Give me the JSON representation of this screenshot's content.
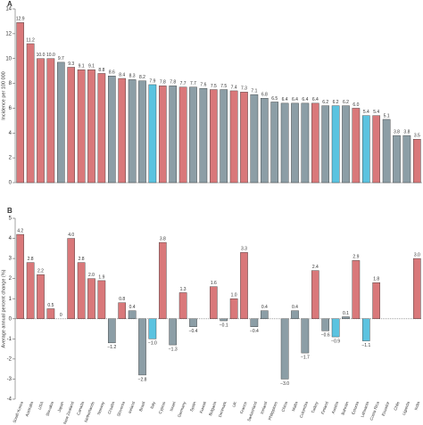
{
  "chart_data": [
    {
      "type": "bar",
      "panel": "A",
      "ylabel": "Incidence per 100 000",
      "values": [
        12.9,
        11.2,
        10.0,
        10.0,
        9.7,
        9.3,
        9.1,
        9.1,
        8.8,
        8.6,
        8.4,
        8.3,
        8.2,
        7.9,
        7.8,
        7.8,
        7.7,
        7.7,
        7.6,
        7.5,
        7.5,
        7.4,
        7.3,
        7.1,
        6.8,
        6.5,
        6.4,
        6.4,
        6.4,
        6.4,
        6.2,
        6.2,
        6.2,
        6.0,
        5.4,
        5.4,
        5.1,
        3.8,
        3.8,
        3.5
      ],
      "value_labels": [
        "12.9",
        "11.2",
        "10.0",
        "10.0",
        "9.7",
        "9.3",
        "9.1",
        "9.1",
        "8.8",
        "8.6",
        "8.4",
        "8.3",
        "8.2",
        "7.9",
        "7.8",
        "7.8",
        "7.7",
        "7.7",
        "7.6",
        "7.5",
        "7.5",
        "7.4",
        "7.3",
        "7.1",
        "6.8",
        "6.5",
        "6.4",
        "6.4",
        "6.4",
        "6.4",
        "6.2",
        "6.2",
        "6.2",
        "6.0",
        "5.4",
        "5.4",
        "5.1",
        "3.8",
        "3.8",
        "3.5"
      ],
      "colors": [
        "#d9787a",
        "#d9787a",
        "#d9787a",
        "#d9787a",
        "#8c9ea6",
        "#d9787a",
        "#d9787a",
        "#d9787a",
        "#d9787a",
        "#8c9ea6",
        "#d9787a",
        "#8c9ea6",
        "#8c9ea6",
        "#5bc3e0",
        "#d9787a",
        "#8c9ea6",
        "#d9787a",
        "#8c9ea6",
        "#8c9ea6",
        "#d9787a",
        "#8c9ea6",
        "#d9787a",
        "#d9787a",
        "#8c9ea6",
        "#8c9ea6",
        "#8c9ea6",
        "#8c9ea6",
        "#8c9ea6",
        "#8c9ea6",
        "#d9787a",
        "#8c9ea6",
        "#5bc3e0",
        "#8c9ea6",
        "#d9787a",
        "#5bc3e0",
        "#d9787a",
        "#8c9ea6",
        "#8c9ea6",
        "#8c9ea6",
        "#d9787a"
      ],
      "ylim": [
        0,
        14
      ],
      "yticks": [
        0,
        2,
        4,
        6,
        8,
        10,
        12,
        14
      ]
    },
    {
      "type": "bar",
      "panel": "B",
      "ylabel": "Average annual percent change (%)",
      "categories": [
        "South Korea",
        "Australia",
        "USA",
        "Slovakia",
        "Japan",
        "New Zealand",
        "Canada",
        "Netherlands",
        "Norway",
        "Croatia",
        "Slovenia",
        "Ireland",
        "Brazil",
        "Italy",
        "Cyprus",
        "Israel",
        "Germany",
        "Spain",
        "Kuwait",
        "Bulgaria",
        "Denmark",
        "UK",
        "France",
        "Switzerland",
        "Iceland",
        "Philippines",
        "China",
        "Malta",
        "Colombia",
        "Turkey",
        "Finland",
        "Austria",
        "Bahrain",
        "Estonia",
        "Lithuania",
        "Costa Rica",
        "Ecuador",
        "Chile",
        "Uganda",
        "India"
      ],
      "values": [
        4.2,
        2.8,
        2.2,
        0.5,
        0,
        4.0,
        2.8,
        2.0,
        1.9,
        -1.2,
        0.8,
        0.4,
        -2.8,
        -1.0,
        3.8,
        -1.3,
        1.3,
        -0.4,
        null,
        1.6,
        -0.1,
        1.0,
        3.3,
        -0.4,
        0.4,
        null,
        -3.0,
        0.4,
        -1.7,
        2.4,
        -0.6,
        -0.9,
        0.1,
        2.9,
        -1.1,
        1.8,
        null,
        null,
        null,
        3.0
      ],
      "value_labels": [
        "4.2",
        "2.8",
        "2.2",
        "0.5",
        "0",
        "4.0",
        "2.8",
        "2.0",
        "1.9",
        "−1.2",
        "0.8",
        "0.4",
        "−2.8",
        "−1.0",
        "3.8",
        "−1.3",
        "1.3",
        "−0.4",
        null,
        "1.6",
        "−0.1",
        "1.0",
        "3.3",
        "−0.4",
        "0.4",
        null,
        "−3.0",
        "0.4",
        "−1.7",
        "2.4",
        "−0.6",
        "−0.9",
        "0.1",
        "2.9",
        "−1.1",
        "1.8",
        null,
        null,
        null,
        "3.0"
      ],
      "colors": [
        "#d9787a",
        "#d9787a",
        "#d9787a",
        "#d9787a",
        "#8c9ea6",
        "#d9787a",
        "#d9787a",
        "#d9787a",
        "#d9787a",
        "#8c9ea6",
        "#d9787a",
        "#8c9ea6",
        "#8c9ea6",
        "#5bc3e0",
        "#d9787a",
        "#8c9ea6",
        "#d9787a",
        "#8c9ea6",
        "#8c9ea6",
        "#d9787a",
        "#8c9ea6",
        "#d9787a",
        "#d9787a",
        "#8c9ea6",
        "#8c9ea6",
        "#8c9ea6",
        "#8c9ea6",
        "#8c9ea6",
        "#8c9ea6",
        "#d9787a",
        "#8c9ea6",
        "#5bc3e0",
        "#8c9ea6",
        "#d9787a",
        "#5bc3e0",
        "#d9787a",
        "#8c9ea6",
        "#8c9ea6",
        "#8c9ea6",
        "#d9787a"
      ],
      "ylim": [
        -4,
        5
      ],
      "yticks": [
        -4,
        -3,
        -2,
        -1,
        0,
        1,
        2,
        3,
        4,
        5
      ]
    }
  ]
}
